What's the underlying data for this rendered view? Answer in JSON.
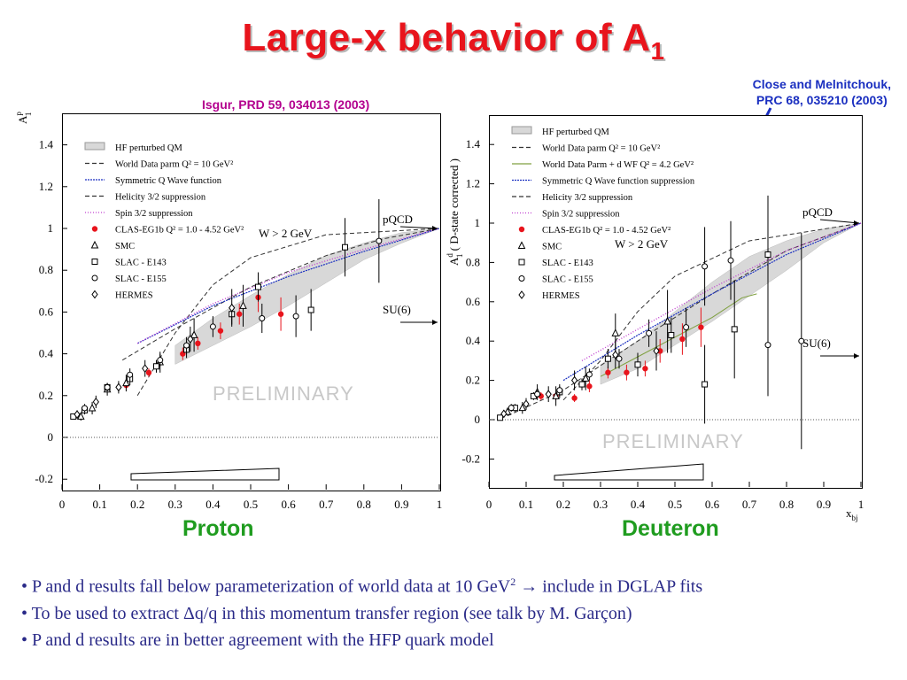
{
  "title": {
    "main": "Large-x behavior of A",
    "sub": "1"
  },
  "references": {
    "isgur": "Isgur, PRD 59, 034013 (2003)",
    "close_line1": "Close and Melnitchouk,",
    "close_line2": "PRC 68, 035210 (2003)"
  },
  "panels": {
    "proton_label": "Proton",
    "deuteron_label": "Deuteron"
  },
  "bullets": {
    "b1_pre": "• P and d results fall below parameterization of world data at 10 GeV",
    "b1_sup": "2",
    "b1_arrow": "→",
    "b1_post": " include in DGLAP fits",
    "b2": "• To be used to extract Δq/q in this momentum transfer region (see talk by M. Garçon)",
    "b3": "• P and d results are in better agreement with the HFP quark model"
  },
  "colors": {
    "title": "#e8141c",
    "clas": "#e8141c",
    "symmetric_q": "#1a2fc0",
    "spin32": "#c040d0",
    "nd_wf": "#7fa040",
    "hf_band": "#d8d8d8"
  },
  "chart_data": [
    {
      "type": "scatter",
      "name": "Proton",
      "ylabel": "A",
      "ylabel_sup": "p",
      "ylabel_sub": "1",
      "xlim": [
        0,
        1
      ],
      "ylim": [
        -0.25,
        1.55
      ],
      "xticks": [
        0,
        0.1,
        0.2,
        0.3,
        0.4,
        0.5,
        0.6,
        0.7,
        0.8,
        0.9,
        1
      ],
      "yticks": [
        -0.2,
        0,
        0.2,
        0.4,
        0.6,
        0.8,
        1,
        1.2,
        1.4
      ],
      "legend": [
        "HF perturbed QM",
        "World Data parm Q² = 10 GeV²",
        "Symmetric Q Wave function",
        "Helicity 3/2 suppression",
        "Spin 3/2 suppression",
        "CLAS-EG1b Q² = 1.0 - 4.52 GeV²",
        "SMC",
        "SLAC - E143",
        "SLAC - E155",
        "HERMES"
      ],
      "annotations": {
        "w_cut": "W > 2 GeV",
        "pqcd": "pQCD",
        "su6": "SU(6)",
        "preliminary": "PRELIMINARY"
      },
      "curves": {
        "world_parm": [
          [
            0.16,
            0.37
          ],
          [
            0.3,
            0.52
          ],
          [
            0.5,
            0.72
          ],
          [
            0.7,
            0.87
          ],
          [
            0.85,
            0.95
          ],
          [
            1.0,
            1.0
          ]
        ],
        "symmetric_q": [
          [
            0.2,
            0.45
          ],
          [
            0.4,
            0.63
          ],
          [
            0.6,
            0.77
          ],
          [
            0.8,
            0.89
          ],
          [
            1.0,
            1.0
          ]
        ],
        "helicity_32": [
          [
            0.2,
            0.2
          ],
          [
            0.3,
            0.5
          ],
          [
            0.4,
            0.73
          ],
          [
            0.5,
            0.86
          ],
          [
            0.7,
            0.97
          ],
          [
            1.0,
            1.0
          ]
        ],
        "spin_32": [
          [
            0.2,
            0.45
          ],
          [
            0.4,
            0.64
          ],
          [
            0.6,
            0.79
          ],
          [
            0.8,
            0.9
          ],
          [
            1.0,
            1.0
          ]
        ],
        "hf_band_upper": [
          [
            0.3,
            0.44
          ],
          [
            0.4,
            0.57
          ],
          [
            0.5,
            0.68
          ],
          [
            0.6,
            0.78
          ],
          [
            0.7,
            0.87
          ],
          [
            0.8,
            0.93
          ],
          [
            0.9,
            0.98
          ],
          [
            1.0,
            1.0
          ]
        ],
        "hf_band_lower": [
          [
            0.3,
            0.35
          ],
          [
            0.4,
            0.44
          ],
          [
            0.5,
            0.53
          ],
          [
            0.6,
            0.63
          ],
          [
            0.7,
            0.74
          ],
          [
            0.8,
            0.85
          ],
          [
            0.9,
            0.93
          ],
          [
            1.0,
            1.0
          ]
        ]
      },
      "series": [
        {
          "name": "CLAS-EG1b",
          "marker": "filled-circle",
          "points": [
            [
              0.17,
              0.25
            ],
            [
              0.23,
              0.31
            ],
            [
              0.32,
              0.4
            ],
            [
              0.36,
              0.45
            ],
            [
              0.42,
              0.51
            ],
            [
              0.47,
              0.59
            ],
            [
              0.52,
              0.67
            ],
            [
              0.58,
              0.59
            ]
          ],
          "err": [
            0.02,
            0.02,
            0.03,
            0.03,
            0.04,
            0.05,
            0.07,
            0.08
          ]
        },
        {
          "name": "SMC",
          "marker": "triangle",
          "points": [
            [
              0.05,
              0.1
            ],
            [
              0.08,
              0.14
            ],
            [
              0.12,
              0.23
            ],
            [
              0.17,
              0.26
            ],
            [
              0.26,
              0.36
            ],
            [
              0.35,
              0.49
            ],
            [
              0.48,
              0.63
            ]
          ],
          "err": [
            0.02,
            0.03,
            0.03,
            0.04,
            0.05,
            0.08,
            0.1
          ]
        },
        {
          "name": "SLAC - E143",
          "marker": "square",
          "points": [
            [
              0.03,
              0.1
            ],
            [
              0.06,
              0.13
            ],
            [
              0.12,
              0.24
            ],
            [
              0.18,
              0.28
            ],
            [
              0.25,
              0.34
            ],
            [
              0.33,
              0.42
            ],
            [
              0.45,
              0.59
            ],
            [
              0.52,
              0.72
            ],
            [
              0.66,
              0.61
            ],
            [
              0.75,
              0.91
            ]
          ],
          "err": [
            0.01,
            0.02,
            0.02,
            0.03,
            0.03,
            0.04,
            0.05,
            0.07,
            0.1,
            0.14
          ]
        },
        {
          "name": "SLAC - E155",
          "marker": "circle",
          "points": [
            [
              0.06,
              0.14
            ],
            [
              0.12,
              0.24
            ],
            [
              0.18,
              0.3
            ],
            [
              0.26,
              0.37
            ],
            [
              0.33,
              0.44
            ],
            [
              0.4,
              0.53
            ],
            [
              0.53,
              0.57
            ],
            [
              0.62,
              0.58
            ],
            [
              0.84,
              0.94
            ]
          ],
          "err": [
            0.02,
            0.02,
            0.03,
            0.03,
            0.04,
            0.05,
            0.07,
            0.1,
            0.2
          ]
        },
        {
          "name": "HERMES",
          "marker": "diamond",
          "points": [
            [
              0.04,
              0.11
            ],
            [
              0.09,
              0.17
            ],
            [
              0.15,
              0.24
            ],
            [
              0.22,
              0.33
            ],
            [
              0.34,
              0.47
            ],
            [
              0.45,
              0.62
            ]
          ],
          "err": [
            0.02,
            0.03,
            0.03,
            0.04,
            0.06,
            0.09
          ]
        }
      ]
    },
    {
      "type": "scatter",
      "name": "Deuteron",
      "ylabel": "A",
      "ylabel_sup": "d",
      "ylabel_sub": "1",
      "ylabel_extra": " ( D-state corrected )",
      "xlabel": "x",
      "xlabel_sub": "bj",
      "xlim": [
        0,
        1
      ],
      "ylim": [
        -0.3,
        1.5
      ],
      "xticks": [
        0,
        0.1,
        0.2,
        0.3,
        0.4,
        0.5,
        0.6,
        0.7,
        0.8,
        0.9,
        1
      ],
      "yticks": [
        -0.2,
        0,
        0.2,
        0.4,
        0.6,
        0.8,
        1,
        1.2,
        1.4
      ],
      "legend": [
        "HF perturbed QM",
        "World Data parm Q² = 10 GeV²",
        "World Data Parm + d WF Q² = 4.2 GeV²",
        "Symmetric Q Wave function suppression",
        "Helicity 3/2 suppression",
        "Spin 3/2 suppression",
        "CLAS-EG1b Q² = 1.0 - 4.52 GeV²",
        "SMC",
        "SLAC - E143",
        "SLAC - E155",
        "HERMES"
      ],
      "annotations": {
        "w_cut": "W > 2 GeV",
        "pqcd": "pQCD",
        "su6": "SU(6)",
        "preliminary": "PRELIMINARY"
      },
      "curves": {
        "world_parm": [
          [
            0.05,
            0.02
          ],
          [
            0.2,
            0.15
          ],
          [
            0.4,
            0.4
          ],
          [
            0.6,
            0.64
          ],
          [
            0.8,
            0.86
          ],
          [
            1.0,
            1.0
          ]
        ],
        "world_parm_dwf": [
          [
            0.3,
            0.22
          ],
          [
            0.4,
            0.32
          ],
          [
            0.5,
            0.42
          ],
          [
            0.6,
            0.52
          ],
          [
            0.68,
            0.62
          ],
          [
            0.72,
            0.64
          ]
        ],
        "symmetric_q": [
          [
            0.2,
            0.2
          ],
          [
            0.4,
            0.43
          ],
          [
            0.6,
            0.64
          ],
          [
            0.8,
            0.84
          ],
          [
            1.0,
            1.0
          ]
        ],
        "helicity_32": [
          [
            0.2,
            0.1
          ],
          [
            0.3,
            0.3
          ],
          [
            0.4,
            0.55
          ],
          [
            0.5,
            0.73
          ],
          [
            0.7,
            0.91
          ],
          [
            1.0,
            1.0
          ]
        ],
        "spin_32": [
          [
            0.25,
            0.3
          ],
          [
            0.4,
            0.46
          ],
          [
            0.6,
            0.67
          ],
          [
            0.8,
            0.86
          ],
          [
            1.0,
            1.0
          ]
        ],
        "hf_band_upper": [
          [
            0.3,
            0.28
          ],
          [
            0.4,
            0.4
          ],
          [
            0.5,
            0.55
          ],
          [
            0.6,
            0.7
          ],
          [
            0.7,
            0.83
          ],
          [
            0.8,
            0.91
          ],
          [
            0.9,
            0.97
          ],
          [
            1.0,
            1.0
          ]
        ],
        "hf_band_lower": [
          [
            0.3,
            0.18
          ],
          [
            0.4,
            0.26
          ],
          [
            0.5,
            0.38
          ],
          [
            0.6,
            0.5
          ],
          [
            0.7,
            0.63
          ],
          [
            0.8,
            0.76
          ],
          [
            0.9,
            0.9
          ],
          [
            1.0,
            1.0
          ]
        ]
      },
      "series": [
        {
          "name": "CLAS-EG1b",
          "marker": "filled-circle",
          "points": [
            [
              0.14,
              0.12
            ],
            [
              0.18,
              0.12
            ],
            [
              0.23,
              0.11
            ],
            [
              0.27,
              0.17
            ],
            [
              0.32,
              0.24
            ],
            [
              0.37,
              0.24
            ],
            [
              0.42,
              0.26
            ],
            [
              0.46,
              0.35
            ],
            [
              0.52,
              0.41
            ],
            [
              0.57,
              0.47
            ]
          ],
          "err": [
            0.02,
            0.02,
            0.02,
            0.03,
            0.03,
            0.04,
            0.04,
            0.06,
            0.08,
            0.1
          ]
        },
        {
          "name": "SMC",
          "marker": "triangle",
          "points": [
            [
              0.05,
              0.04
            ],
            [
              0.09,
              0.06
            ],
            [
              0.13,
              0.14
            ],
            [
              0.18,
              0.12
            ],
            [
              0.26,
              0.21
            ],
            [
              0.34,
              0.44
            ],
            [
              0.48,
              0.5
            ]
          ],
          "err": [
            0.02,
            0.03,
            0.04,
            0.05,
            0.06,
            0.1,
            0.16
          ]
        },
        {
          "name": "SLAC - E143",
          "marker": "square",
          "points": [
            [
              0.03,
              0.01
            ],
            [
              0.07,
              0.06
            ],
            [
              0.12,
              0.12
            ],
            [
              0.19,
              0.14
            ],
            [
              0.25,
              0.18
            ],
            [
              0.32,
              0.31
            ],
            [
              0.4,
              0.28
            ],
            [
              0.49,
              0.43
            ],
            [
              0.58,
              0.18
            ],
            [
              0.66,
              0.46
            ],
            [
              0.75,
              0.84
            ]
          ],
          "err": [
            0.01,
            0.02,
            0.02,
            0.03,
            0.03,
            0.05,
            0.06,
            0.09,
            0.2,
            0.25,
            0.3
          ]
        },
        {
          "name": "SLAC - E155",
          "marker": "circle",
          "points": [
            [
              0.06,
              0.06
            ],
            [
              0.13,
              0.13
            ],
            [
              0.19,
              0.15
            ],
            [
              0.27,
              0.23
            ],
            [
              0.35,
              0.31
            ],
            [
              0.43,
              0.44
            ],
            [
              0.53,
              0.47
            ],
            [
              0.58,
              0.78
            ],
            [
              0.65,
              0.81
            ],
            [
              0.75,
              0.38
            ],
            [
              0.84,
              0.4
            ]
          ],
          "err": [
            0.02,
            0.02,
            0.03,
            0.03,
            0.05,
            0.07,
            0.1,
            0.2,
            0.2,
            0.26,
            0.55
          ]
        },
        {
          "name": "HERMES",
          "marker": "diamond",
          "points": [
            [
              0.04,
              0.03
            ],
            [
              0.1,
              0.08
            ],
            [
              0.16,
              0.13
            ],
            [
              0.23,
              0.2
            ],
            [
              0.34,
              0.33
            ],
            [
              0.45,
              0.35
            ]
          ],
          "err": [
            0.02,
            0.03,
            0.04,
            0.05,
            0.07,
            0.1
          ]
        }
      ]
    }
  ]
}
